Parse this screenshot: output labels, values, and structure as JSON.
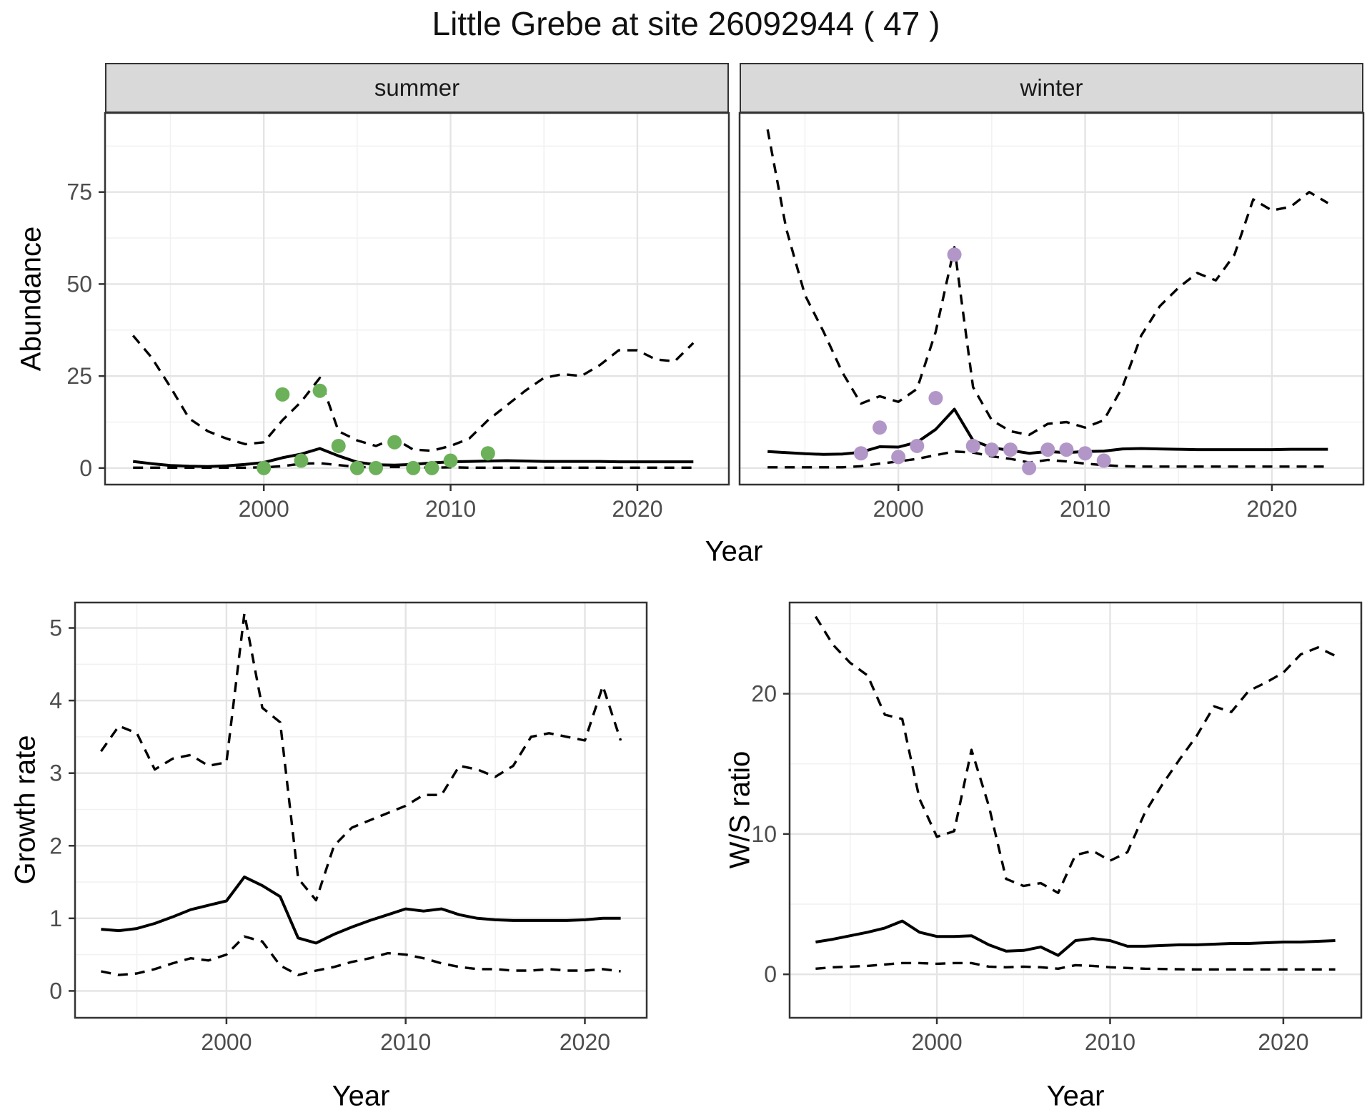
{
  "title": "Little Grebe at site 26092944 ( 47 )",
  "colors": {
    "summer_points": "#6CB159",
    "winter_points": "#B296C8",
    "line": "#000000",
    "grid_major": "#E4E4E4",
    "grid_minor": "#F1F1F1",
    "panel_border": "#333333",
    "strip_fill": "#D9D9D9",
    "tick_label": "#4D4D4D"
  },
  "chart_data": [
    {
      "id": "abundance_summer",
      "type": "line",
      "facet_label": "summer",
      "xlabel": "Year",
      "ylabel": "Abundance",
      "x_ticks": [
        2000,
        2010,
        2020
      ],
      "x_minor": [
        1995,
        2005,
        2015
      ],
      "y_ticks": [
        0,
        25,
        50,
        75
      ],
      "y_minor": [
        12.5,
        37.5,
        62.5,
        87.5
      ],
      "xlim": [
        1991.5,
        2024.9
      ],
      "ylim": [
        -4.5,
        96.5
      ],
      "grid": true,
      "legend": "none",
      "years": [
        1993,
        1994,
        1995,
        1996,
        1997,
        1998,
        1999,
        2000,
        2001,
        2002,
        2003,
        2004,
        2005,
        2006,
        2007,
        2008,
        2009,
        2010,
        2011,
        2012,
        2013,
        2014,
        2015,
        2016,
        2017,
        2018,
        2019,
        2020,
        2021,
        2022,
        2023
      ],
      "series": [
        {
          "name": "mean",
          "style": "solid",
          "values": [
            1.8,
            1.2,
            0.7,
            0.5,
            0.4,
            0.6,
            1.0,
            1.5,
            2.8,
            3.8,
            5.3,
            3.3,
            1.6,
            0.9,
            0.8,
            1.0,
            1.4,
            1.7,
            1.8,
            1.9,
            2.0,
            1.9,
            1.8,
            1.8,
            1.8,
            1.8,
            1.7,
            1.7,
            1.7,
            1.7,
            1.7
          ]
        },
        {
          "name": "upper_ci",
          "style": "dashed",
          "values": [
            36,
            30,
            22,
            13.5,
            10,
            8,
            6.5,
            7,
            13,
            18,
            24.5,
            10,
            7.5,
            6,
            8,
            5,
            4.7,
            6,
            8,
            13,
            17,
            21,
            24.5,
            25.5,
            25,
            28,
            32,
            32,
            29.5,
            29,
            34
          ]
        },
        {
          "name": "lower_ci",
          "style": "dashed",
          "values": [
            0.1,
            0.1,
            0.1,
            0.1,
            0.1,
            0.1,
            0.1,
            0.2,
            0.5,
            1.2,
            1.3,
            0.8,
            0.3,
            0.2,
            0.3,
            0.2,
            0.1,
            0.2,
            0.1,
            0.1,
            0.1,
            0.1,
            0.1,
            0.1,
            0.1,
            0.1,
            0.1,
            0.1,
            0.1,
            0.1,
            0.1
          ]
        }
      ],
      "points": {
        "name": "observed_counts",
        "color_key": "summer_points",
        "data": [
          [
            2000,
            0
          ],
          [
            2001,
            20
          ],
          [
            2002,
            2
          ],
          [
            2003,
            21
          ],
          [
            2004,
            6
          ],
          [
            2005,
            0
          ],
          [
            2006,
            0
          ],
          [
            2007,
            7
          ],
          [
            2008,
            0
          ],
          [
            2009,
            0
          ],
          [
            2010,
            2
          ],
          [
            2012,
            4
          ]
        ]
      }
    },
    {
      "id": "abundance_winter",
      "type": "line",
      "facet_label": "winter",
      "xlabel": "Year",
      "ylabel": "Abundance",
      "x_ticks": [
        2000,
        2010,
        2020
      ],
      "x_minor": [
        1995,
        2005,
        2015
      ],
      "y_ticks": [
        0,
        25,
        50,
        75
      ],
      "y_minor": [
        12.5,
        37.5,
        62.5,
        87.5
      ],
      "xlim": [
        1991.5,
        2024.9
      ],
      "ylim": [
        -4.5,
        96.5
      ],
      "grid": true,
      "legend": "none",
      "years": [
        1993,
        1994,
        1995,
        1996,
        1997,
        1998,
        1999,
        2000,
        2001,
        2002,
        2003,
        2004,
        2005,
        2006,
        2007,
        2008,
        2009,
        2010,
        2011,
        2012,
        2013,
        2014,
        2015,
        2016,
        2017,
        2018,
        2019,
        2020,
        2021,
        2022,
        2023
      ],
      "series": [
        {
          "name": "mean",
          "style": "solid",
          "values": [
            4.5,
            4.2,
            3.9,
            3.7,
            3.8,
            4.3,
            5.8,
            5.7,
            7,
            10.5,
            16,
            7.5,
            5.5,
            4.8,
            4.0,
            4.5,
            4.2,
            4.5,
            4.6,
            5.2,
            5.3,
            5.2,
            5.1,
            5.0,
            5.0,
            5.0,
            5.0,
            5.0,
            5.1,
            5.1,
            5.1
          ]
        },
        {
          "name": "upper_ci",
          "style": "dashed",
          "values": [
            92,
            65,
            47,
            37,
            26,
            17.5,
            19.5,
            18,
            21.5,
            37,
            60,
            22,
            13,
            10,
            9,
            12,
            12.5,
            11,
            13,
            22,
            36,
            44,
            49,
            53,
            51,
            58,
            73,
            70,
            71,
            75,
            72
          ]
        },
        {
          "name": "lower_ci",
          "style": "dashed",
          "values": [
            0.2,
            0.2,
            0.2,
            0.2,
            0.2,
            0.5,
            1.2,
            1.8,
            2.5,
            3.5,
            4.5,
            4.2,
            3.2,
            2.5,
            1.5,
            2.2,
            1.8,
            1.2,
            0.8,
            0.5,
            0.4,
            0.4,
            0.4,
            0.4,
            0.4,
            0.4,
            0.4,
            0.4,
            0.4,
            0.4,
            0.4
          ]
        }
      ],
      "points": {
        "name": "observed_counts",
        "color_key": "winter_points",
        "data": [
          [
            1998,
            4
          ],
          [
            1999,
            11
          ],
          [
            2000,
            3
          ],
          [
            2001,
            6
          ],
          [
            2002,
            19
          ],
          [
            2003,
            58
          ],
          [
            2004,
            6
          ],
          [
            2005,
            5
          ],
          [
            2006,
            5
          ],
          [
            2007,
            0
          ],
          [
            2008,
            5
          ],
          [
            2009,
            5
          ],
          [
            2010,
            4
          ],
          [
            2011,
            2
          ]
        ]
      }
    },
    {
      "id": "growth_rate",
      "type": "line",
      "facet_label": "",
      "xlabel": "Year",
      "ylabel": "Growth rate",
      "x_ticks": [
        2000,
        2010,
        2020
      ],
      "x_minor": [
        1995,
        2005,
        2015
      ],
      "y_ticks": [
        0,
        1,
        2,
        3,
        4,
        5
      ],
      "y_minor": [
        0.5,
        1.5,
        2.5,
        3.5,
        4.5
      ],
      "xlim": [
        1991.55,
        2023.45
      ],
      "ylim": [
        -0.37,
        5.35
      ],
      "grid": true,
      "legend": "none",
      "years": [
        1993,
        1994,
        1995,
        1996,
        1997,
        1998,
        1999,
        2000,
        2001,
        2002,
        2003,
        2004,
        2005,
        2006,
        2007,
        2008,
        2009,
        2010,
        2011,
        2012,
        2013,
        2014,
        2015,
        2016,
        2017,
        2018,
        2019,
        2020,
        2021,
        2022
      ],
      "series": [
        {
          "name": "mean",
          "style": "solid",
          "values": [
            0.85,
            0.83,
            0.86,
            0.93,
            1.02,
            1.12,
            1.18,
            1.24,
            1.57,
            1.45,
            1.3,
            0.73,
            0.66,
            0.78,
            0.88,
            0.97,
            1.05,
            1.13,
            1.1,
            1.13,
            1.05,
            1.0,
            0.98,
            0.97,
            0.97,
            0.97,
            0.97,
            0.98,
            1.0,
            1.0
          ]
        },
        {
          "name": "upper_ci",
          "style": "dashed",
          "values": [
            3.3,
            3.65,
            3.55,
            3.05,
            3.2,
            3.25,
            3.1,
            3.15,
            5.2,
            3.9,
            3.7,
            1.55,
            1.25,
            2.0,
            2.25,
            2.35,
            2.45,
            2.55,
            2.7,
            2.7,
            3.1,
            3.05,
            2.95,
            3.1,
            3.5,
            3.55,
            3.5,
            3.45,
            4.2,
            3.45
          ]
        },
        {
          "name": "lower_ci",
          "style": "dashed",
          "values": [
            0.27,
            0.22,
            0.24,
            0.3,
            0.38,
            0.45,
            0.42,
            0.5,
            0.75,
            0.68,
            0.35,
            0.22,
            0.28,
            0.33,
            0.4,
            0.45,
            0.52,
            0.5,
            0.45,
            0.38,
            0.33,
            0.3,
            0.3,
            0.28,
            0.28,
            0.3,
            0.28,
            0.28,
            0.3,
            0.27
          ]
        }
      ],
      "points": {
        "name": "none",
        "color_key": "",
        "data": []
      }
    },
    {
      "id": "ws_ratio",
      "type": "line",
      "facet_label": "",
      "xlabel": "Year",
      "ylabel": "W/S ratio",
      "x_ticks": [
        2000,
        2010,
        2020
      ],
      "x_minor": [
        1995,
        2005,
        2015
      ],
      "y_ticks": [
        0,
        10,
        20
      ],
      "y_minor": [
        5,
        15,
        25
      ],
      "xlim": [
        1991.5,
        2024.5
      ],
      "ylim": [
        -3.1,
        26.5
      ],
      "grid": true,
      "legend": "none",
      "years": [
        1993,
        1994,
        1995,
        1996,
        1997,
        1998,
        1999,
        2000,
        2001,
        2002,
        2003,
        2004,
        2005,
        2006,
        2007,
        2008,
        2009,
        2010,
        2011,
        2012,
        2013,
        2014,
        2015,
        2016,
        2017,
        2018,
        2019,
        2020,
        2021,
        2022,
        2023
      ],
      "series": [
        {
          "name": "mean",
          "style": "solid",
          "values": [
            2.3,
            2.5,
            2.75,
            3.0,
            3.3,
            3.8,
            3.0,
            2.7,
            2.7,
            2.75,
            2.1,
            1.65,
            1.7,
            1.95,
            1.35,
            2.4,
            2.55,
            2.4,
            2.0,
            2.0,
            2.05,
            2.1,
            2.1,
            2.15,
            2.2,
            2.2,
            2.25,
            2.3,
            2.3,
            2.35,
            2.4
          ]
        },
        {
          "name": "upper_ci",
          "style": "dashed",
          "values": [
            25.5,
            23.5,
            22.2,
            21.3,
            18.5,
            18.2,
            12.5,
            9.8,
            10.2,
            16,
            12,
            6.8,
            6.3,
            6.5,
            5.8,
            8.5,
            8.8,
            8.1,
            8.7,
            11.5,
            13.5,
            15.3,
            17,
            19.1,
            18.7,
            20.2,
            20.8,
            21.5,
            22.8,
            23.3,
            22.7
          ]
        },
        {
          "name": "lower_ci",
          "style": "dashed",
          "values": [
            0.4,
            0.5,
            0.55,
            0.6,
            0.7,
            0.8,
            0.8,
            0.75,
            0.8,
            0.8,
            0.55,
            0.5,
            0.55,
            0.5,
            0.4,
            0.65,
            0.6,
            0.5,
            0.45,
            0.4,
            0.38,
            0.36,
            0.35,
            0.35,
            0.35,
            0.35,
            0.35,
            0.35,
            0.35,
            0.35,
            0.35
          ]
        }
      ],
      "points": {
        "name": "none",
        "color_key": "",
        "data": []
      }
    }
  ]
}
